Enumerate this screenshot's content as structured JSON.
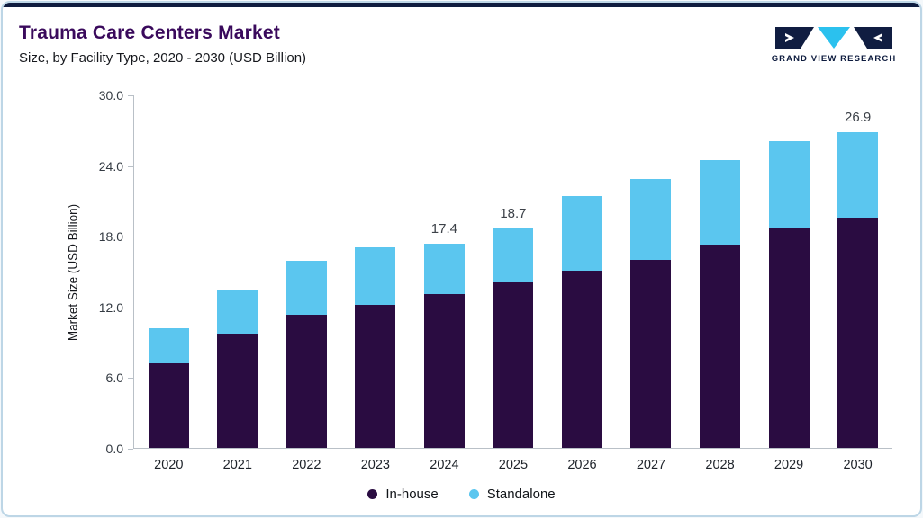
{
  "header": {
    "title": "Trauma Care Centers Market",
    "subtitle": "Size, by Facility Type, 2020 - 2030 (USD Billion)"
  },
  "logo": {
    "text": "GRAND VIEW RESEARCH"
  },
  "colors": {
    "inhouse": "#2a0c41",
    "standalone": "#5bc6ef",
    "title": "#3a0a5c",
    "accent_bar": "#0f1c3f",
    "border": "#bdd6e6",
    "logo_dark": "#101d41",
    "logo_cyan": "#2bc1ee"
  },
  "chart_data": {
    "type": "bar",
    "stacked": true,
    "title": "Trauma Care Centers Market Size, by Facility Type, 2020 - 2030 (USD Billion)",
    "categories": [
      "2020",
      "2021",
      "2022",
      "2023",
      "2024",
      "2025",
      "2026",
      "2027",
      "2028",
      "2029",
      "2030"
    ],
    "series": [
      {
        "name": "In-house",
        "color": "#2a0c41",
        "values": [
          7.2,
          9.7,
          11.3,
          12.2,
          13.1,
          14.1,
          15.1,
          16.0,
          17.3,
          18.7,
          19.6
        ]
      },
      {
        "name": "Standalone",
        "color": "#5bc6ef",
        "values": [
          3.0,
          3.8,
          4.6,
          4.9,
          4.3,
          4.6,
          6.3,
          6.9,
          7.2,
          7.4,
          7.3
        ]
      }
    ],
    "totals": [
      10.2,
      13.5,
      15.9,
      17.1,
      17.4,
      18.7,
      21.4,
      22.9,
      24.5,
      26.1,
      26.9
    ],
    "bar_labels": [
      "",
      "",
      "",
      "",
      "17.4",
      "18.7",
      "",
      "",
      "",
      "",
      "26.9"
    ],
    "xlabel": "",
    "ylabel": "Market Size (USD Billion)",
    "ylim": [
      0,
      30
    ],
    "yticks": [
      "0.0",
      "6.0",
      "12.0",
      "18.0",
      "24.0",
      "30.0"
    ],
    "grid": false,
    "legend_position": "bottom"
  },
  "legend": {
    "items": [
      {
        "label": "In-house",
        "color": "#2a0c41"
      },
      {
        "label": "Standalone",
        "color": "#5bc6ef"
      }
    ]
  }
}
